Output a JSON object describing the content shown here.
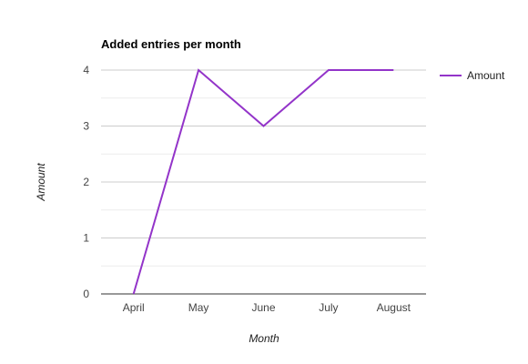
{
  "chart_data": {
    "type": "line",
    "title": "Added entries per month",
    "xlabel": "Month",
    "ylabel": "Amount",
    "categories": [
      "April",
      "May",
      "June",
      "July",
      "August"
    ],
    "series": [
      {
        "name": "Amount",
        "values": [
          0,
          4,
          3,
          4,
          4
        ],
        "color": "#9334c9"
      }
    ],
    "ylim": [
      0,
      4
    ],
    "yticks": [
      "0",
      "1",
      "2",
      "3",
      "4"
    ],
    "grid": true,
    "minor_grid": true,
    "legend": "right"
  }
}
